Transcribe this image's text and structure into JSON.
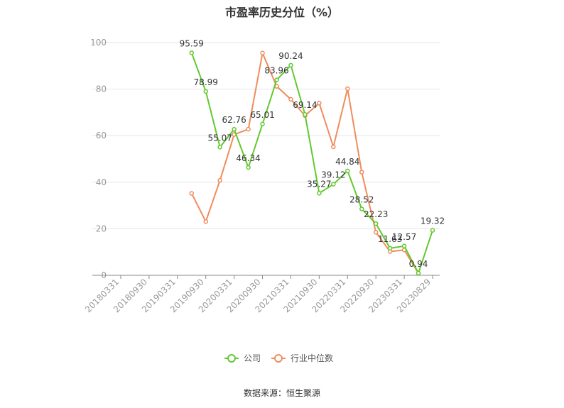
{
  "title": "市盈率历史分位（%）",
  "source": "数据来源：恒生聚源",
  "colors": {
    "company": "#62c92f",
    "industry": "#f08c5d",
    "grid": "#e6e6e6",
    "axis": "#888888",
    "tick_text": "#999999",
    "label_text": "#333333"
  },
  "legend": {
    "position": "bottom-center",
    "items": [
      "公司",
      "行业中位数"
    ]
  },
  "chart_data": {
    "type": "line",
    "title": "市盈率历史分位（%）",
    "xlabel": "",
    "ylabel": "",
    "ylim": [
      0,
      100
    ],
    "yticks": [
      0,
      20,
      40,
      60,
      80,
      100
    ],
    "grid": true,
    "x_tick_labels": [
      "20180331",
      "20180930",
      "20190331",
      "20190930",
      "20200331",
      "20200930",
      "20210331",
      "20210930",
      "20220331",
      "20220930",
      "20230331",
      "20230829"
    ],
    "x_tick_indices": [
      0,
      2,
      4,
      6,
      8,
      10,
      12,
      14,
      16,
      18,
      20,
      22
    ],
    "x": [
      "20180331",
      "20180630",
      "20180930",
      "20181231",
      "20190331",
      "20190630",
      "20190930",
      "20191231",
      "20200331",
      "20200630",
      "20200930",
      "20201231",
      "20210331",
      "20210630",
      "20210930",
      "20211231",
      "20220331",
      "20220630",
      "20220930",
      "20221231",
      "20230331",
      "20230630",
      "20230829"
    ],
    "series": [
      {
        "name": "公司",
        "color": "#62c92f",
        "values": [
          null,
          null,
          null,
          null,
          null,
          95.59,
          78.99,
          55.07,
          62.76,
          46.34,
          65.01,
          83.96,
          90.24,
          69.14,
          35.27,
          39.12,
          44.84,
          28.52,
          22.23,
          11.63,
          12.57,
          0.94,
          19.32
        ],
        "labels": [
          null,
          null,
          null,
          null,
          null,
          "95.59",
          "78.99",
          "55.07",
          "62.76",
          "46.34",
          "65.01",
          "83.96",
          "90.24",
          "69.14",
          "35.27",
          "39.12",
          "44.84",
          "28.52",
          "22.23",
          "11.63",
          "12.57",
          "0.94",
          "19.32"
        ]
      },
      {
        "name": "行业中位数",
        "color": "#f08c5d",
        "values": [
          null,
          null,
          null,
          null,
          null,
          35.2,
          23.1,
          40.8,
          60.5,
          62.8,
          95.5,
          81.2,
          75.6,
          68.6,
          74.0,
          55.2,
          80.2,
          44.3,
          18.5,
          10.2,
          10.9,
          0.9,
          null
        ]
      }
    ]
  }
}
